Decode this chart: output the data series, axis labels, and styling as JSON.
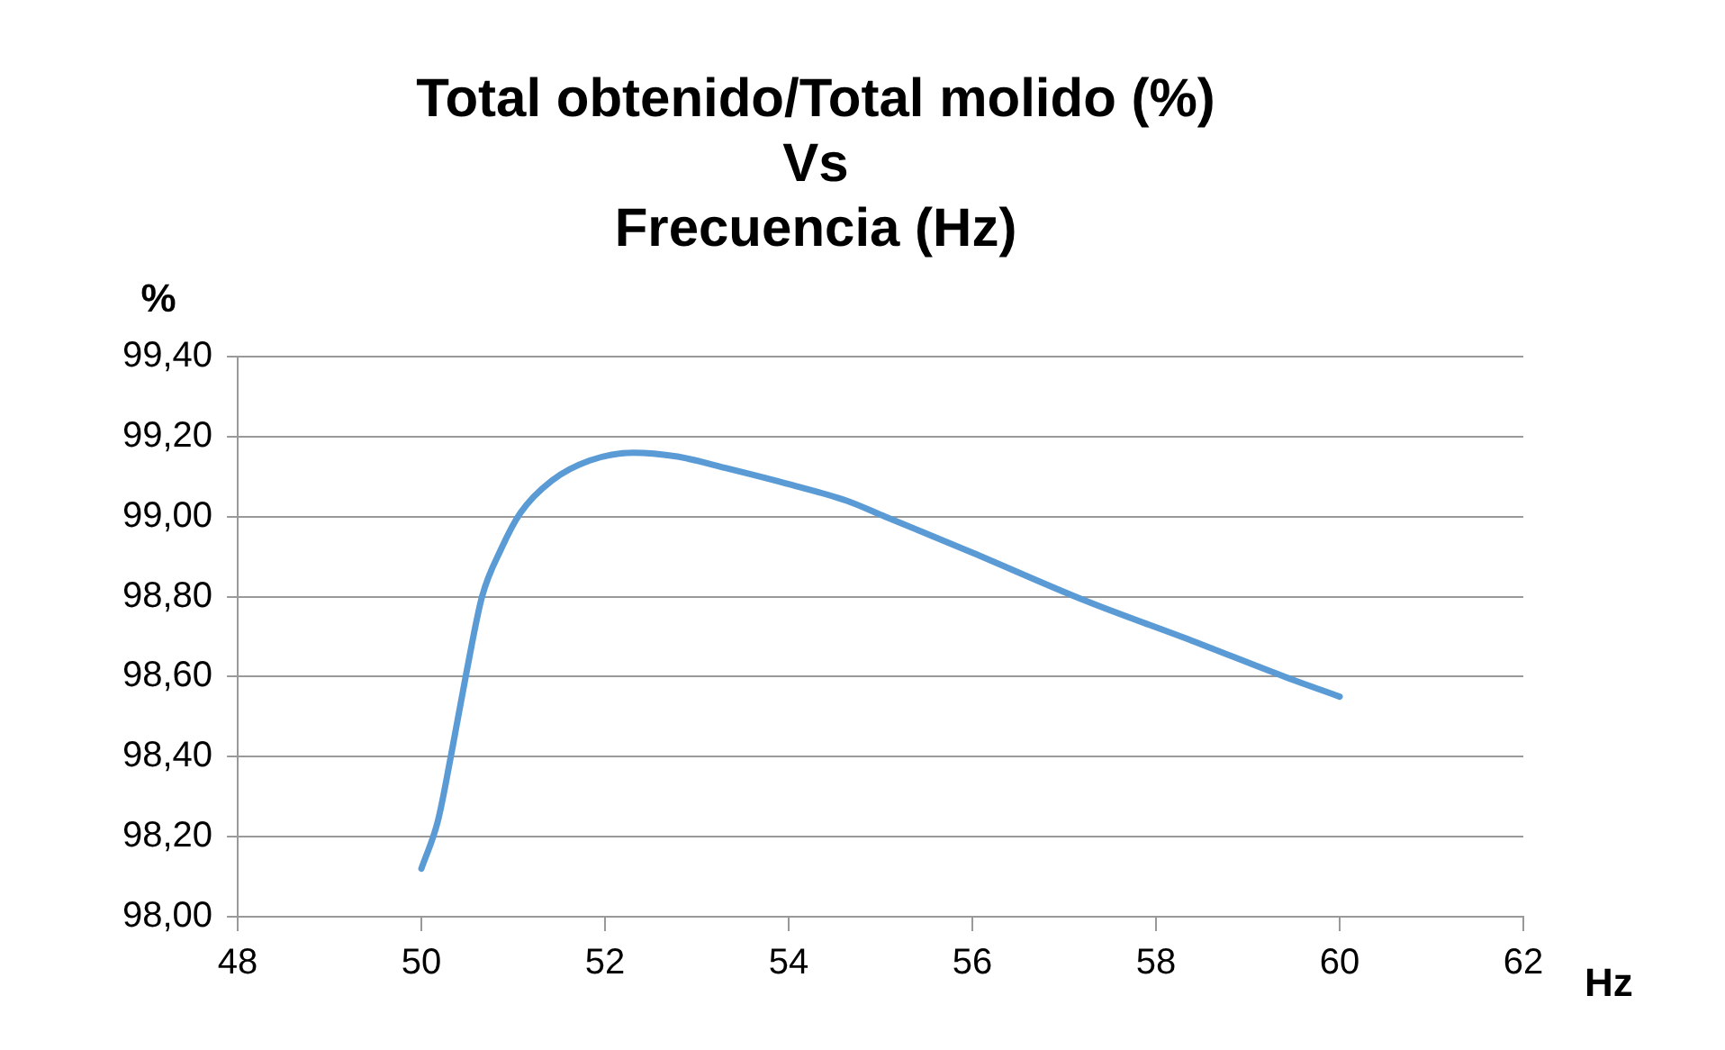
{
  "chart_data": {
    "type": "line",
    "title": "Total obtenido/Total molido (%)\nVs\nFrecuencia (Hz)",
    "xlabel": "Hz",
    "ylabel": "%",
    "x": [
      50,
      50.18,
      50.32,
      50.49,
      50.66,
      50.87,
      51.08,
      51.42,
      51.83,
      52.31,
      52.79,
      53.34,
      54.02,
      54.63,
      55.05,
      56,
      57.23,
      58.39,
      59.4,
      60
    ],
    "series": [
      {
        "color": "#5b9bd5",
        "values": [
          98.12,
          98.24,
          98.4,
          98.61,
          98.8,
          98.92,
          99.01,
          99.09,
          99.14,
          99.16,
          99.15,
          99.12,
          99.08,
          99.04,
          99.0,
          98.91,
          98.79,
          98.69,
          98.6,
          98.55
        ]
      }
    ],
    "xlim": [
      48,
      62
    ],
    "xticks": [
      48,
      50,
      52,
      54,
      56,
      58,
      60,
      62
    ],
    "ylim": [
      98,
      99.4
    ],
    "yticks": [
      {
        "value": 98,
        "label": "98,00"
      },
      {
        "value": 98.2,
        "label": "98,20"
      },
      {
        "value": 98.4,
        "label": "98,40"
      },
      {
        "value": 98.6,
        "label": "98,60"
      },
      {
        "value": 98.8,
        "label": "98,80"
      },
      {
        "value": 99,
        "label": "99,00"
      },
      {
        "value": 99.2,
        "label": "99,20"
      },
      {
        "value": 99.4,
        "label": "99,40"
      }
    ],
    "grid": "y",
    "legend": false,
    "marker": "none",
    "line_style": "solid"
  }
}
